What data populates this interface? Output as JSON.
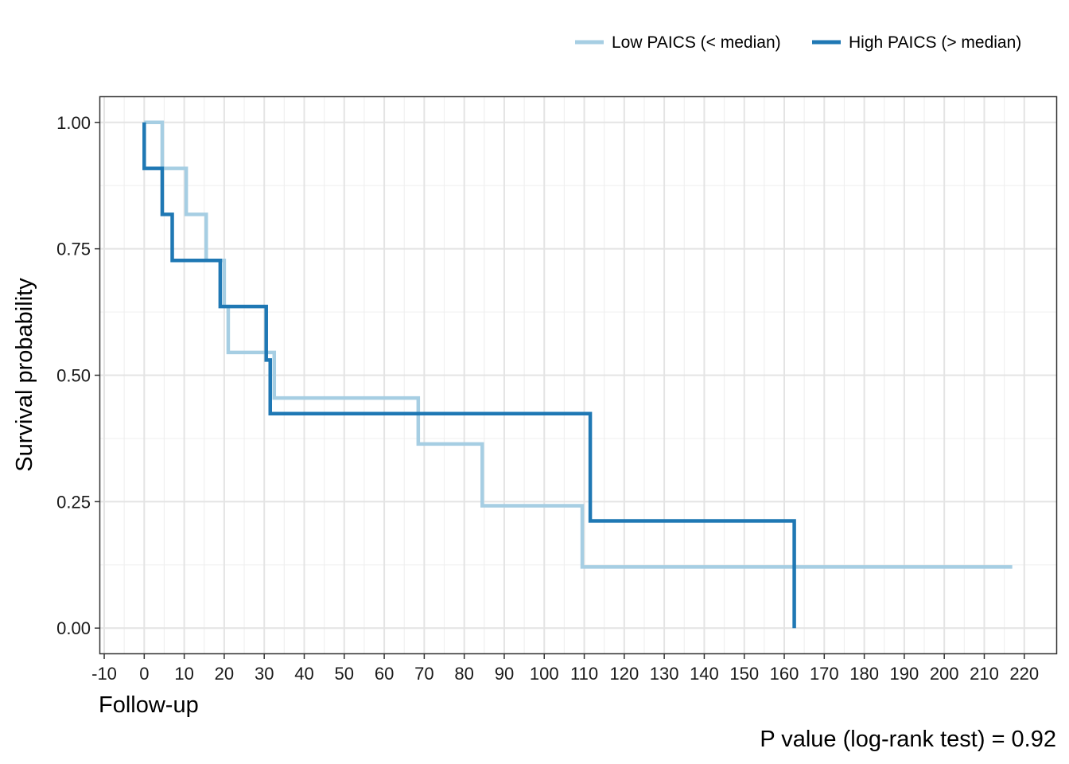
{
  "chart_data": {
    "type": "line",
    "xlabel": "Follow-up",
    "ylabel": "Survival probability",
    "xlim": [
      -11,
      228
    ],
    "ylim": [
      -0.05,
      1.05
    ],
    "x_ticks": [
      -10,
      0,
      10,
      20,
      30,
      40,
      50,
      60,
      70,
      80,
      90,
      100,
      110,
      120,
      130,
      140,
      150,
      160,
      170,
      180,
      190,
      200,
      210,
      220
    ],
    "x_tick_labels": [
      "-10",
      "0",
      "10",
      "20",
      "30",
      "40",
      "50",
      "60",
      "70",
      "80",
      "90",
      "100",
      "110",
      "120",
      "130",
      "140",
      "150",
      "160",
      "170",
      "180",
      "190",
      "200",
      "210",
      "220"
    ],
    "y_ticks": [
      0,
      0.25,
      0.5,
      0.75,
      1.0
    ],
    "y_tick_labels": [
      "0.00",
      "0.25",
      "0.50",
      "0.75",
      "1.00"
    ],
    "grid": true,
    "legend_position": "top-right",
    "annotation": "P value (log-rank test) = 0.92",
    "series": [
      {
        "name": "Low PAICS (< median)",
        "color": "#a6cee3",
        "step": true,
        "x": [
          0,
          4.5,
          10.5,
          15.5,
          20,
          21,
          32.5,
          68.5,
          84.5,
          109.5,
          217
        ],
        "y": [
          1.0,
          0.909,
          0.818,
          0.727,
          0.636,
          0.545,
          0.455,
          0.364,
          0.242,
          0.121,
          0.121
        ]
      },
      {
        "name": "High PAICS (> median)",
        "color": "#1f78b4",
        "step": true,
        "x": [
          0,
          0,
          4.5,
          7,
          19,
          30.5,
          31.5,
          111.5,
          162.5,
          162.5
        ],
        "y": [
          1.0,
          0.909,
          0.818,
          0.727,
          0.636,
          0.53,
          0.424,
          0.212,
          0.212,
          0.0
        ]
      }
    ]
  }
}
